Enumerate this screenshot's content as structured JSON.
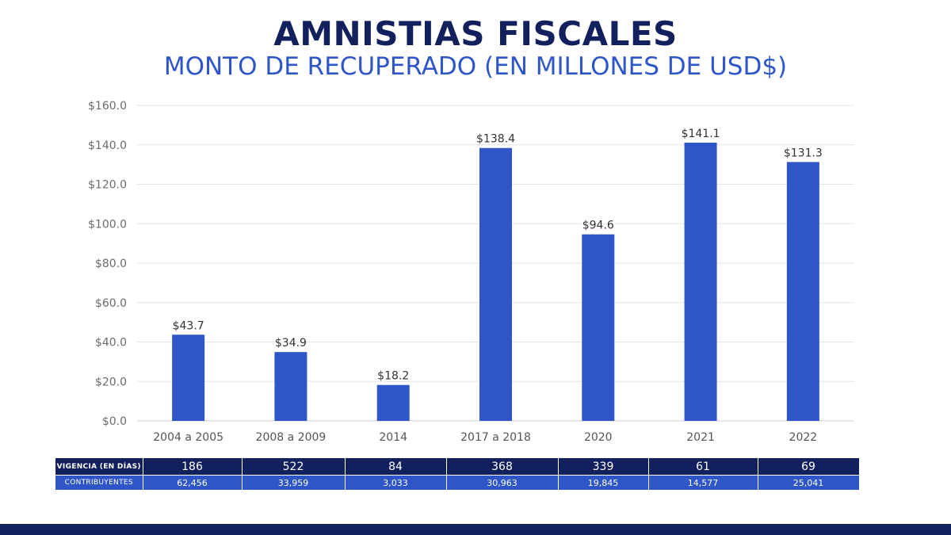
{
  "header": {
    "title": "AMNISTIAS FISCALES",
    "subtitle": "MONTO DE RECUPERADO (EN MILLONES DE USD$)"
  },
  "chart_data": {
    "type": "bar",
    "categories": [
      "2004 a 2005",
      "2008 a 2009",
      "2014",
      "2017 a 2018",
      "2020",
      "2021",
      "2022"
    ],
    "values": [
      43.7,
      34.9,
      18.2,
      138.4,
      94.6,
      141.1,
      131.3
    ],
    "value_labels": [
      "$43.7",
      "$34.9",
      "$18.2",
      "$138.4",
      "$94.6",
      "$141.1",
      "$131.3"
    ],
    "ylim": [
      0,
      160
    ],
    "yticks": [
      0,
      20,
      40,
      60,
      80,
      100,
      120,
      140,
      160
    ],
    "ytick_labels": [
      "$0.0",
      "$20.0",
      "$40.0",
      "$60.0",
      "$80.0",
      "$100.0",
      "$120.0",
      "$140.0",
      "$160.0"
    ],
    "grid": true,
    "bar_color": "#2f56c9"
  },
  "table": {
    "rows": [
      {
        "label": "VIGENCIA (EN DÍAS)",
        "values": [
          "186",
          "522",
          "84",
          "368",
          "339",
          "61",
          "69"
        ]
      },
      {
        "label": "CONTRIBUYENTES",
        "values": [
          "62,456",
          "33,959",
          "3,033",
          "30,963",
          "19,845",
          "14,577",
          "25,041"
        ]
      }
    ]
  },
  "colors": {
    "navy": "#12215e",
    "blue": "#2f56c9"
  }
}
